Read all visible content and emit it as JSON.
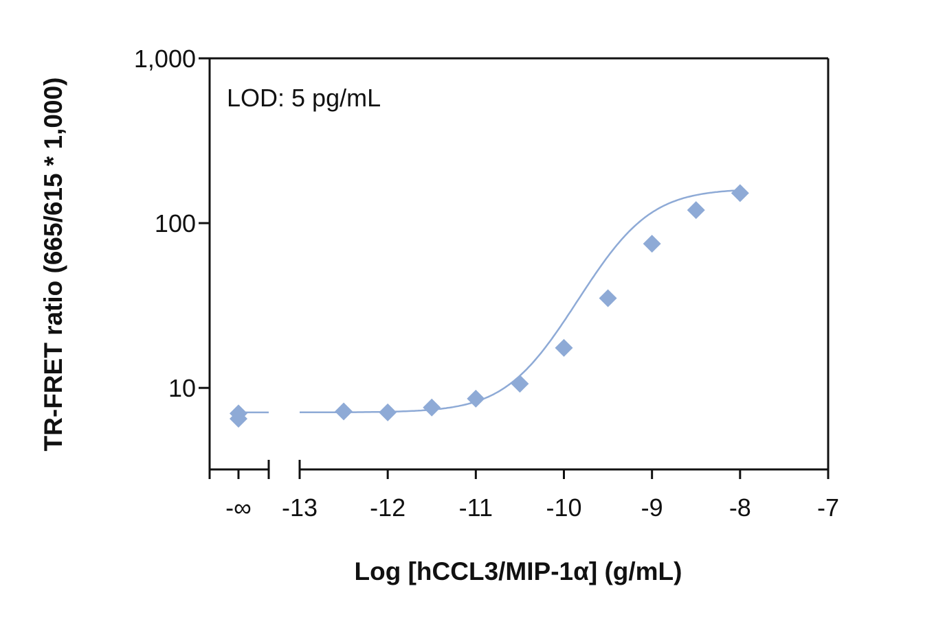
{
  "chart_data": {
    "type": "scatter",
    "xlabel": "Log [hCCL3/MIP-1α] (g/mL)",
    "ylabel": "TR-FRET ratio (665/615 * 1,000)",
    "annotation": "LOD: 5 pg/mL",
    "yscale": "log",
    "xlim": [
      -13,
      -7
    ],
    "ylim": [
      3.2,
      1000
    ],
    "x_ticks": [
      -13,
      -12,
      -11,
      -10,
      -9,
      -8,
      -7
    ],
    "x_tick_labels": [
      "-13",
      "-12",
      "-11",
      "-10",
      "-9",
      "-8",
      "-7"
    ],
    "x_break_label": "-∞",
    "y_ticks": [
      10,
      100,
      1000
    ],
    "y_tick_labels": [
      "10",
      "100",
      "1,000"
    ],
    "grid": false,
    "legend": "none",
    "colors": {
      "series": "#8eaad6",
      "axis": "#111111"
    },
    "series": [
      {
        "zero_dose_values": [
          7.0,
          6.5
        ],
        "x": [
          -12.5,
          -12,
          -11.5,
          -11,
          -10.5,
          -10,
          -9.5,
          -9,
          -8.5,
          -8
        ],
        "y": [
          7.2,
          7.1,
          7.6,
          8.6,
          10.6,
          17.5,
          35,
          75,
          120,
          152
        ]
      }
    ],
    "fit": {
      "type": "4PL",
      "bottom": 7.1,
      "top": 162,
      "logEC50": -9.3,
      "hill": 1.25
    }
  }
}
